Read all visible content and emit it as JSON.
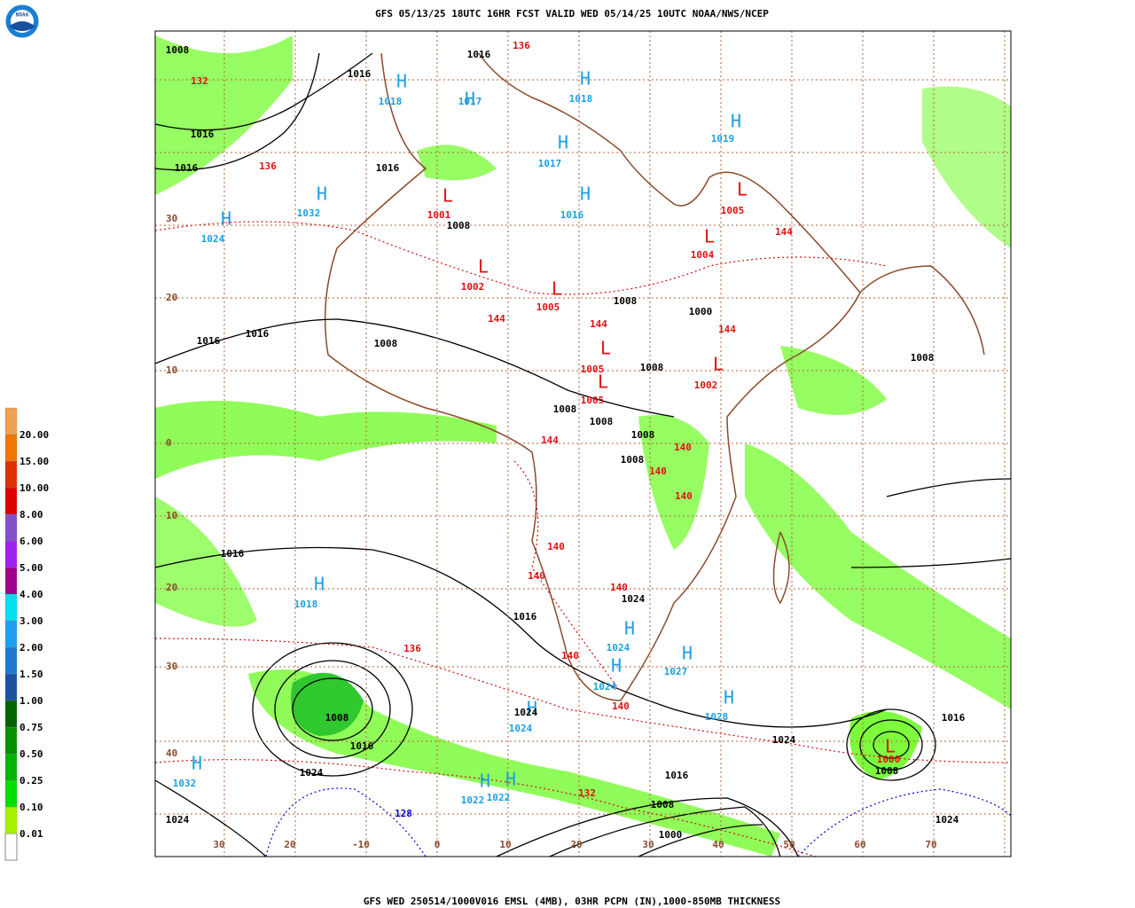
{
  "header": {
    "title": "GFS 05/13/25 18UTC 16HR FCST VALID WED 05/14/25 10UTC NOAA/NWS/NCEP",
    "logo_text": "NOAA"
  },
  "footer": "GFS WED 250514/1000V016 EMSL (4MB), 03HR PCPN (IN),1000-850MB THICKNESS",
  "legend": {
    "labels": [
      "0.01",
      "0.10",
      "0.25",
      "0.50",
      "0.75",
      "1.00",
      "1.50",
      "2.00",
      "3.00",
      "4.00",
      "5.00",
      "6.00",
      "8.00",
      "10.00",
      "15.00",
      "20.00"
    ]
  },
  "lat_labels": [
    "30",
    "20",
    "10",
    "0",
    "10",
    "20",
    "30",
    "40"
  ],
  "lon_labels": [
    "30",
    "20",
    "-10",
    "0",
    "10",
    "20",
    "30",
    "40",
    "50",
    "60",
    "70"
  ],
  "highs": [
    {
      "label": "H",
      "value": "1018"
    },
    {
      "label": "H",
      "value": "1017"
    },
    {
      "label": "H",
      "value": "1032"
    },
    {
      "label": "H",
      "value": "1024"
    },
    {
      "label": "H",
      "value": "1018"
    },
    {
      "label": "H",
      "value": "1017"
    },
    {
      "label": "H",
      "value": "1016"
    },
    {
      "label": "H",
      "value": "1019"
    },
    {
      "label": "H",
      "value": "1018"
    },
    {
      "label": "H",
      "value": "1024"
    },
    {
      "label": "H",
      "value": "1024"
    },
    {
      "label": "H",
      "value": "1027"
    },
    {
      "label": "H",
      "value": "1028"
    },
    {
      "label": "H",
      "value": "1024"
    },
    {
      "label": "H",
      "value": "1032"
    },
    {
      "label": "H",
      "value": "1022"
    },
    {
      "label": "H",
      "value": "1022"
    }
  ],
  "lows": [
    {
      "label": "L",
      "value": "1001"
    },
    {
      "label": "L",
      "value": "1002"
    },
    {
      "label": "L",
      "value": "1005"
    },
    {
      "label": "L",
      "value": "1005"
    },
    {
      "label": "L",
      "value": "1005"
    },
    {
      "label": "L",
      "value": "1005"
    },
    {
      "label": "L",
      "value": "1004"
    },
    {
      "label": "L",
      "value": "1002"
    },
    {
      "label": "L",
      "value": "1000"
    }
  ],
  "isobar_labels": [
    "1008",
    "1016",
    "1016",
    "1016",
    "1016",
    "1016",
    "1008",
    "1008",
    "1000",
    "1008",
    "1016",
    "1016",
    "1008",
    "1008",
    "1008",
    "1008",
    "1008",
    "1008",
    "1016",
    "1016",
    "1024",
    "1024",
    "1016",
    "1024",
    "1016",
    "1008",
    "1000",
    "1024",
    "1024",
    "1024",
    "1016",
    "1008",
    "1008"
  ],
  "thickness_labels": [
    "136",
    "132",
    "136",
    "144",
    "144",
    "144",
    "140",
    "140",
    "140",
    "140",
    "140",
    "140",
    "140",
    "140",
    "136",
    "132",
    "144",
    "144"
  ],
  "cold_thickness_labels": [
    "128"
  ]
}
